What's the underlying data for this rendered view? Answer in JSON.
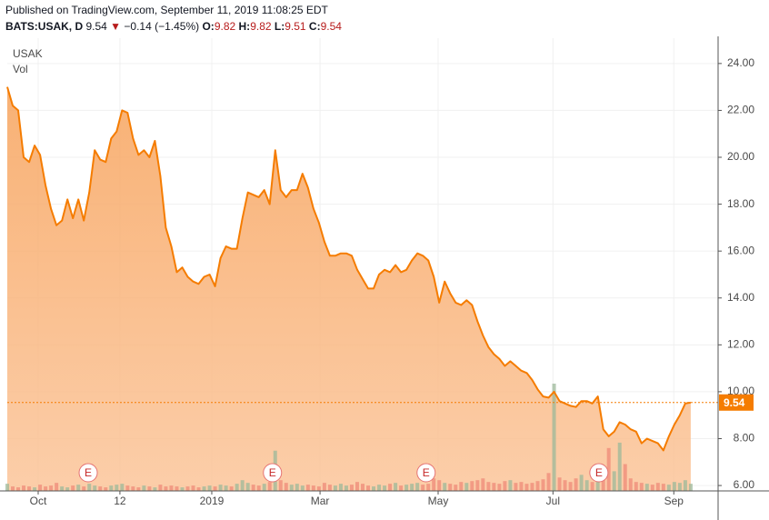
{
  "header": {
    "published": "Published on TradingView.com, September 11, 2019 11:08:25 EDT",
    "symbol": "BATS:USAK, D",
    "last": "9.54",
    "arrow": "▼",
    "change": "−0.14 (−1.45%)",
    "ohlc": [
      {
        "key": "O:",
        "value": "9.82"
      },
      {
        "key": "H:",
        "value": "9.82"
      },
      {
        "key": "L:",
        "value": "9.51"
      },
      {
        "key": "C:",
        "value": "9.54"
      }
    ]
  },
  "chart_data": {
    "type": "area",
    "series_label": "USAK",
    "volume_label": "Vol",
    "color": "#f57c00",
    "values": [
      23.0,
      22.2,
      22.0,
      20.0,
      19.8,
      20.5,
      20.1,
      18.8,
      17.8,
      17.1,
      17.3,
      18.2,
      17.4,
      18.2,
      17.3,
      18.5,
      20.3,
      19.9,
      19.8,
      20.8,
      21.1,
      22.0,
      21.9,
      20.8,
      20.1,
      20.3,
      20.0,
      20.7,
      19.2,
      17.0,
      16.2,
      15.1,
      15.3,
      14.9,
      14.7,
      14.6,
      14.9,
      15.0,
      14.5,
      15.7,
      16.2,
      16.1,
      16.1,
      17.4,
      18.5,
      18.4,
      18.3,
      18.6,
      18.0,
      20.3,
      18.6,
      18.3,
      18.6,
      18.6,
      19.3,
      18.7,
      17.8,
      17.2,
      16.4,
      15.8,
      15.8,
      15.9,
      15.9,
      15.8,
      15.2,
      14.8,
      14.4,
      14.4,
      15.0,
      15.2,
      15.1,
      15.4,
      15.1,
      15.2,
      15.6,
      15.9,
      15.8,
      15.6,
      14.9,
      13.8,
      14.7,
      14.2,
      13.8,
      13.7,
      13.9,
      13.7,
      13.0,
      12.4,
      11.9,
      11.6,
      11.4,
      11.1,
      11.3,
      11.1,
      10.9,
      10.8,
      10.5,
      10.1,
      9.8,
      9.75,
      10.0,
      9.6,
      9.5,
      9.4,
      9.35,
      9.6,
      9.6,
      9.5,
      9.8,
      8.4,
      8.1,
      8.3,
      8.7,
      8.6,
      8.4,
      8.3,
      7.8,
      8.0,
      7.9,
      7.8,
      7.5,
      8.1,
      8.6,
      9.0,
      9.5,
      9.54
    ],
    "volume": [
      8,
      5,
      4,
      6,
      5,
      4,
      7,
      5,
      6,
      9,
      5,
      4,
      6,
      7,
      5,
      8,
      6,
      5,
      4,
      6,
      7,
      8,
      6,
      5,
      4,
      6,
      5,
      4,
      7,
      5,
      6,
      5,
      4,
      5,
      6,
      4,
      5,
      6,
      5,
      7,
      6,
      5,
      8,
      12,
      9,
      7,
      6,
      8,
      10,
      45,
      12,
      9,
      7,
      8,
      6,
      7,
      6,
      5,
      9,
      7,
      6,
      8,
      6,
      7,
      10,
      8,
      6,
      5,
      7,
      6,
      8,
      9,
      6,
      7,
      8,
      9,
      7,
      8,
      14,
      12,
      9,
      8,
      7,
      10,
      9,
      11,
      12,
      14,
      10,
      9,
      8,
      11,
      12,
      9,
      10,
      8,
      9,
      11,
      13,
      20,
      120,
      15,
      12,
      10,
      14,
      18,
      12,
      10,
      22,
      16,
      48,
      22,
      54,
      30,
      14,
      10,
      9,
      8,
      7,
      9,
      8,
      7,
      10,
      9,
      12,
      8
    ],
    "xlim": [
      0,
      130
    ],
    "xticks": [
      {
        "value": 5.65,
        "label": "Oct"
      },
      {
        "value": 20.6,
        "label": "12"
      },
      {
        "value": 37.4,
        "label": "2019"
      },
      {
        "value": 57.2,
        "label": "Mar"
      },
      {
        "value": 78.8,
        "label": "May"
      },
      {
        "value": 99.8,
        "label": "Jul"
      },
      {
        "value": 121.9,
        "label": "Sep"
      }
    ],
    "ylim": [
      5.77,
      25.08
    ],
    "yticks": [
      {
        "value": 6,
        "label": "6.00"
      },
      {
        "value": 8,
        "label": "8.00"
      },
      {
        "value": 10,
        "label": "10.00"
      },
      {
        "value": 12,
        "label": "12.00"
      },
      {
        "value": 14,
        "label": "14.00"
      },
      {
        "value": 16,
        "label": "16.00"
      },
      {
        "value": 18,
        "label": "18.00"
      },
      {
        "value": 20,
        "label": "20.00"
      },
      {
        "value": 22,
        "label": "22.00"
      },
      {
        "value": 24,
        "label": "24.00"
      }
    ],
    "last_price": {
      "value": 9.54,
      "label": "9.54"
    },
    "earnings": [
      {
        "value": 14.8,
        "label": "E"
      },
      {
        "value": 48.5,
        "label": "E"
      },
      {
        "value": 76.6,
        "label": "E"
      },
      {
        "value": 108.2,
        "label": "E"
      }
    ],
    "grid": true
  }
}
